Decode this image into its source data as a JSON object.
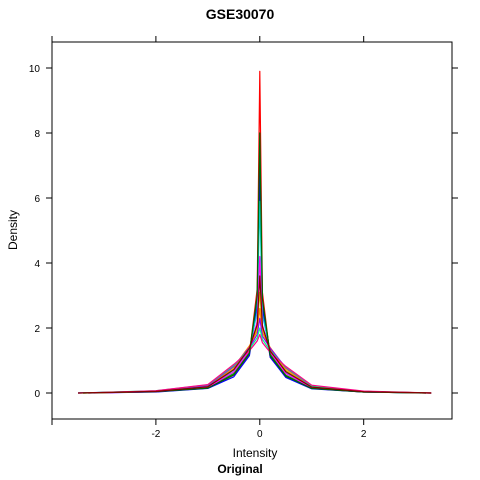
{
  "chart_data": {
    "type": "line",
    "title": "GSE30070",
    "xlabel": "Intensity",
    "ylabel": "Density",
    "subtitle": "Original",
    "xlim": [
      -4,
      3.7
    ],
    "ylim": [
      -0.8,
      10.8
    ],
    "x_ticks": [
      -2,
      0,
      2
    ],
    "y_ticks": [
      0,
      2,
      4,
      6,
      8,
      10
    ],
    "grid": false,
    "colors": [
      "#FF0000",
      "#00AA00",
      "#0000FF",
      "#00CCCC",
      "#FF00FF",
      "#CCCC00",
      "#FF8800",
      "#8800FF",
      "#00FF88",
      "#FF0088",
      "#006600",
      "#880000"
    ],
    "series": [
      {
        "peak": 9.9,
        "spread": 0.42,
        "x": [
          -3.5,
          -2.0,
          -1.0,
          -0.5,
          -0.2,
          -0.05,
          0,
          0.05,
          0.2,
          0.5,
          1.0,
          2.0,
          3.3
        ],
        "y": [
          0.0,
          0.04,
          0.15,
          0.55,
          1.2,
          3.2,
          9.9,
          3.1,
          1.1,
          0.5,
          0.14,
          0.03,
          0.0
        ]
      },
      {
        "peak": 7.2,
        "spread": 0.45,
        "x": [
          -3.4,
          -2.0,
          -1.0,
          -0.5,
          -0.2,
          -0.05,
          0,
          0.05,
          0.2,
          0.5,
          1.0,
          2.0,
          3.2
        ],
        "y": [
          0.0,
          0.04,
          0.16,
          0.6,
          1.25,
          2.9,
          7.2,
          2.8,
          1.2,
          0.55,
          0.15,
          0.03,
          0.0
        ]
      },
      {
        "peak": 6.8,
        "spread": 0.4,
        "x": [
          -3.3,
          -2.0,
          -1.0,
          -0.5,
          -0.2,
          -0.05,
          0,
          0.05,
          0.2,
          0.5,
          1.0,
          2.0,
          3.3
        ],
        "y": [
          0.0,
          0.03,
          0.14,
          0.5,
          1.15,
          2.7,
          6.8,
          2.6,
          1.1,
          0.48,
          0.13,
          0.03,
          0.0
        ]
      },
      {
        "peak": 5.9,
        "spread": 0.5,
        "x": [
          -3.5,
          -2.0,
          -1.0,
          -0.5,
          -0.2,
          -0.05,
          0,
          0.05,
          0.2,
          0.5,
          1.0,
          2.0,
          3.1
        ],
        "y": [
          0.0,
          0.05,
          0.18,
          0.7,
          1.35,
          2.5,
          5.9,
          2.4,
          1.3,
          0.62,
          0.17,
          0.04,
          0.0
        ]
      },
      {
        "peak": 4.2,
        "spread": 0.48,
        "x": [
          -3.2,
          -2.0,
          -1.0,
          -0.5,
          -0.2,
          -0.05,
          0,
          0.05,
          0.2,
          0.5,
          1.0,
          2.0,
          3.3
        ],
        "y": [
          0.0,
          0.04,
          0.17,
          0.65,
          1.3,
          2.2,
          4.2,
          2.1,
          1.25,
          0.6,
          0.16,
          0.04,
          0.0
        ]
      },
      {
        "peak": 3.1,
        "spread": 0.55,
        "x": [
          -3.4,
          -2.0,
          -1.0,
          -0.5,
          -0.2,
          -0.05,
          0,
          0.05,
          0.2,
          0.5,
          1.0,
          2.0,
          3.2
        ],
        "y": [
          0.0,
          0.05,
          0.2,
          0.75,
          1.4,
          2.0,
          3.1,
          1.95,
          1.35,
          0.7,
          0.19,
          0.04,
          0.0
        ]
      },
      {
        "peak": 2.6,
        "spread": 0.6,
        "x": [
          -3.3,
          -2.0,
          -1.0,
          -0.5,
          -0.2,
          -0.05,
          0,
          0.05,
          0.2,
          0.5,
          1.0,
          2.0,
          3.3
        ],
        "y": [
          0.0,
          0.06,
          0.22,
          0.8,
          1.45,
          1.9,
          2.6,
          1.85,
          1.4,
          0.75,
          0.2,
          0.05,
          0.0
        ]
      },
      {
        "peak": 2.3,
        "spread": 0.62,
        "x": [
          -3.5,
          -2.0,
          -1.0,
          -0.5,
          -0.2,
          -0.05,
          0,
          0.05,
          0.2,
          0.5,
          1.0,
          2.0,
          3.2
        ],
        "y": [
          0.0,
          0.06,
          0.23,
          0.82,
          1.4,
          1.8,
          2.3,
          1.75,
          1.38,
          0.78,
          0.21,
          0.05,
          0.0
        ]
      },
      {
        "peak": 2.0,
        "spread": 0.65,
        "x": [
          -3.4,
          -2.0,
          -1.0,
          -0.5,
          -0.2,
          -0.05,
          0,
          0.05,
          0.2,
          0.5,
          1.0,
          2.0,
          3.3
        ],
        "y": [
          0.0,
          0.07,
          0.25,
          0.85,
          1.35,
          1.7,
          2.0,
          1.65,
          1.3,
          0.8,
          0.22,
          0.05,
          0.0
        ]
      },
      {
        "peak": 1.8,
        "spread": 0.68,
        "x": [
          -3.3,
          -2.0,
          -1.0,
          -0.5,
          -0.2,
          -0.05,
          0,
          0.05,
          0.2,
          0.5,
          1.0,
          2.0,
          3.3
        ],
        "y": [
          0.0,
          0.07,
          0.26,
          0.88,
          1.3,
          1.6,
          1.8,
          1.55,
          1.25,
          0.82,
          0.24,
          0.06,
          0.0
        ]
      },
      {
        "peak": 8.0,
        "spread": 0.43,
        "x": [
          -3.4,
          -2.0,
          -1.0,
          -0.5,
          -0.2,
          -0.05,
          0,
          0.05,
          0.2,
          0.5,
          1.0,
          2.0,
          3.2
        ],
        "y": [
          0.0,
          0.04,
          0.15,
          0.56,
          1.22,
          3.0,
          8.0,
          2.9,
          1.15,
          0.52,
          0.14,
          0.03,
          0.0
        ]
      },
      {
        "peak": 3.6,
        "spread": 0.52,
        "x": [
          -3.5,
          -2.0,
          -1.0,
          -0.5,
          -0.2,
          -0.05,
          0,
          0.05,
          0.2,
          0.5,
          1.0,
          2.0,
          3.3
        ],
        "y": [
          0.0,
          0.05,
          0.19,
          0.72,
          1.38,
          2.1,
          3.6,
          2.05,
          1.3,
          0.66,
          0.18,
          0.04,
          0.0
        ]
      }
    ]
  }
}
